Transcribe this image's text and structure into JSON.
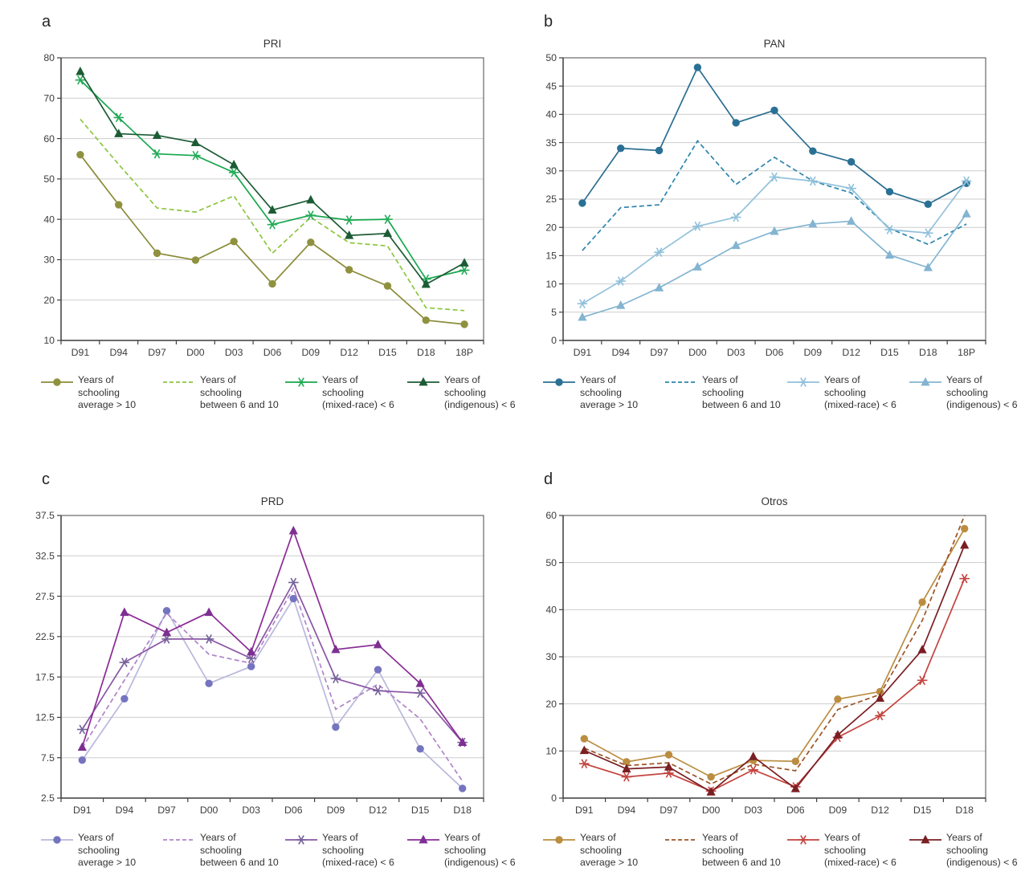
{
  "page": {
    "background": "#ffffff",
    "text_color": "#3d3d3d"
  },
  "style": {
    "grid_color": "#cdcdcd",
    "border_color": "#595959",
    "axis_color": "#404040",
    "axis_text_color": "#3d3d3d",
    "axis_font_size": 12.3
  },
  "chart_data": [
    {
      "letter": "a",
      "title": "PRI",
      "type": "line",
      "grid": "horizontal",
      "legend_position": "bottom",
      "categories": [
        "D91",
        "D94",
        "D97",
        "D00",
        "D03",
        "D06",
        "D09",
        "D12",
        "D15",
        "D18",
        "18P"
      ],
      "ylim": [
        10,
        80
      ],
      "y_ticks": [
        80,
        70,
        60,
        50,
        40,
        30,
        20,
        10
      ],
      "y_tick_labels": [
        "80",
        "70",
        "60",
        "50",
        "40",
        "30",
        "20",
        "10"
      ],
      "series": [
        {
          "name": "Years of schooling average > 10",
          "legend_lines": [
            "Years of",
            "schooling",
            "average > 10"
          ],
          "marker": "circle",
          "line_style": "solid",
          "line_color": "#8a8b39",
          "marker_color": "#90913f",
          "values": [
            56.0,
            43.6,
            31.6,
            29.9,
            34.5,
            24.0,
            34.3,
            27.5,
            23.5,
            15.0,
            14.0
          ]
        },
        {
          "name": "Years of schooling between 6 and 10",
          "legend_lines": [
            "Years of",
            "schooling",
            "between 6 and 10"
          ],
          "marker": "none",
          "line_style": "dashed",
          "line_color": "#8cc63f",
          "marker_color": "#8cc63f",
          "values": [
            64.8,
            53.6,
            42.8,
            41.8,
            45.8,
            31.6,
            40.5,
            34.2,
            33.4,
            18.1,
            17.4
          ]
        },
        {
          "name": "Years of schooling (mixed-race) < 6",
          "legend_lines": [
            "Years of",
            "schooling",
            "(mixed-race) < 6"
          ],
          "marker": "asterisk",
          "line_style": "solid",
          "line_color": "#17a74f",
          "marker_color": "#21ab57",
          "values": [
            74.5,
            65.2,
            56.2,
            55.8,
            51.6,
            38.7,
            41.0,
            39.8,
            40.0,
            25.2,
            27.4
          ]
        },
        {
          "name": "Years of schooling (indigenous) < 6",
          "legend_lines": [
            "Years of",
            "schooling",
            "(indigenous) < 6"
          ],
          "marker": "triangle",
          "line_style": "solid",
          "line_color": "#1c5c35",
          "marker_color": "#1c5c35",
          "values": [
            76.6,
            61.2,
            60.8,
            59.0,
            53.5,
            42.3,
            44.8,
            36.0,
            36.5,
            23.9,
            29.2
          ]
        }
      ]
    },
    {
      "letter": "b",
      "title": "PAN",
      "type": "line",
      "grid": "horizontal",
      "legend_position": "bottom",
      "categories": [
        "D91",
        "D94",
        "D97",
        "D00",
        "D03",
        "D06",
        "D09",
        "D12",
        "D15",
        "D18",
        "18P"
      ],
      "ylim": [
        0,
        50
      ],
      "y_ticks": [
        50,
        45,
        40,
        35,
        30,
        25,
        20,
        15,
        10,
        5,
        0
      ],
      "y_tick_labels": [
        "50",
        "45",
        "40",
        "35",
        "30",
        "25",
        "20",
        "15",
        "10",
        "5",
        "0"
      ],
      "series": [
        {
          "name": "Years of schooling average > 10",
          "legend_lines": [
            "Years of",
            "schooling",
            "average > 10"
          ],
          "marker": "circle",
          "line_style": "solid",
          "line_color": "#2a6e91",
          "marker_color": "#2a7095",
          "values": [
            24.3,
            34.0,
            33.6,
            48.3,
            38.5,
            40.7,
            33.5,
            31.6,
            26.3,
            24.1,
            27.8
          ]
        },
        {
          "name": "Years of schooling between 6 and 10",
          "legend_lines": [
            "Years of",
            "schooling",
            "between 6 and 10"
          ],
          "marker": "none",
          "line_style": "dashed",
          "line_color": "#2c85ad",
          "marker_color": "#2c85ad",
          "values": [
            15.9,
            23.5,
            24.0,
            35.3,
            27.6,
            32.4,
            28.2,
            26.1,
            19.8,
            17.0,
            20.6
          ]
        },
        {
          "name": "Years of schooling (mixed-race) < 6",
          "legend_lines": [
            "Years of",
            "schooling",
            "(mixed-race) < 6"
          ],
          "marker": "asterisk",
          "line_style": "solid",
          "line_color": "#92c1db",
          "marker_color": "#8fc0da",
          "values": [
            6.5,
            10.5,
            15.6,
            20.2,
            21.8,
            28.9,
            28.2,
            26.9,
            19.6,
            19.0,
            28.2
          ]
        },
        {
          "name": "Years of schooling (indigenous) < 6",
          "legend_lines": [
            "Years of",
            "schooling",
            "(indigenous) < 6"
          ],
          "marker": "triangle",
          "line_style": "solid",
          "line_color": "#83b4d1",
          "marker_color": "#83b4d1",
          "values": [
            4.1,
            6.2,
            9.3,
            13.0,
            16.8,
            19.3,
            20.6,
            21.1,
            15.1,
            12.9,
            22.4
          ]
        }
      ]
    },
    {
      "letter": "c",
      "title": "PRD",
      "type": "line",
      "grid": "horizontal",
      "legend_position": "bottom",
      "categories": [
        "D91",
        "D94",
        "D97",
        "D00",
        "D03",
        "D06",
        "D09",
        "D12",
        "D15",
        "D18"
      ],
      "ylim": [
        2.5,
        37.5
      ],
      "y_ticks": [
        37.5,
        32.5,
        27.5,
        22.5,
        17.5,
        12.5,
        7.5,
        2.5
      ],
      "y_tick_labels": [
        "37.5",
        "32.5",
        "27.5",
        "22.5",
        "17.5",
        "12.5",
        "7.5",
        "2.5"
      ],
      "series": [
        {
          "name": "Years of schooling average > 10",
          "legend_lines": [
            "Years of",
            "schooling",
            "average > 10"
          ],
          "marker": "circle",
          "line_style": "solid",
          "line_color": "#b8b8dc",
          "marker_color": "#7474bf",
          "values": [
            7.2,
            14.8,
            25.7,
            16.7,
            18.8,
            27.2,
            11.3,
            18.4,
            8.6,
            3.7
          ]
        },
        {
          "name": "Years of schooling between 6 and 10",
          "legend_lines": [
            "Years of",
            "schooling",
            "between 6 and 10"
          ],
          "marker": "none",
          "line_style": "dashed",
          "line_color": "#b184c9",
          "marker_color": "#b184c9",
          "values": [
            8.7,
            17.1,
            25.4,
            20.3,
            19.2,
            28.5,
            13.5,
            16.6,
            12.3,
            4.6
          ]
        },
        {
          "name": "Years of schooling (mixed-race) < 6",
          "legend_lines": [
            "Years of",
            "schooling",
            "(mixed-race) < 6"
          ],
          "marker": "asterisk",
          "line_style": "solid",
          "line_color": "#8a55a5",
          "marker_color": "#75619b",
          "values": [
            11.0,
            19.3,
            22.2,
            22.2,
            19.8,
            29.2,
            17.3,
            15.8,
            15.5,
            9.4
          ]
        },
        {
          "name": "Years of schooling (indigenous) < 6",
          "legend_lines": [
            "Years of",
            "schooling",
            "(indigenous) < 6"
          ],
          "marker": "triangle",
          "line_style": "solid",
          "line_color": "#8a2b96",
          "marker_color": "#7d2f92",
          "values": [
            8.8,
            25.5,
            23.0,
            25.5,
            20.6,
            35.6,
            20.9,
            21.5,
            16.7,
            9.4
          ]
        }
      ]
    },
    {
      "letter": "d",
      "title": "Otros",
      "type": "line",
      "grid": "horizontal",
      "legend_position": "bottom",
      "categories": [
        "D91",
        "D94",
        "D97",
        "D00",
        "D03",
        "D06",
        "D09",
        "D12",
        "D15",
        "D18"
      ],
      "ylim": [
        0,
        60
      ],
      "y_ticks": [
        60,
        50,
        40,
        30,
        20,
        10,
        0
      ],
      "y_tick_labels": [
        "60",
        "50",
        "40",
        "30",
        "20",
        "10",
        "0"
      ],
      "series": [
        {
          "name": "Years of schooling average > 10",
          "legend_lines": [
            "Years of",
            "schooling",
            "average > 10"
          ],
          "marker": "circle",
          "line_style": "solid",
          "line_color": "#bb8d41",
          "marker_color": "#bb8d41",
          "values": [
            12.6,
            7.7,
            9.2,
            4.5,
            8.0,
            7.8,
            21.0,
            22.6,
            41.6,
            57.2
          ]
        },
        {
          "name": "Years of schooling between 6 and 10",
          "legend_lines": [
            "Years of",
            "schooling",
            "between 6 and 10"
          ],
          "marker": "none",
          "line_style": "dashed",
          "line_color": "#9c5526",
          "marker_color": "#9c5526",
          "values": [
            10.6,
            6.9,
            7.5,
            3.0,
            7.2,
            5.8,
            18.8,
            22.0,
            37.7,
            60.0
          ]
        },
        {
          "name": "Years of schooling (mixed-race) < 6",
          "legend_lines": [
            "Years of",
            "schooling",
            "(mixed-race) < 6"
          ],
          "marker": "asterisk",
          "line_style": "solid",
          "line_color": "#c4433f",
          "marker_color": "#c4433f",
          "values": [
            7.3,
            4.5,
            5.3,
            1.5,
            6.0,
            2.4,
            12.9,
            17.5,
            25.0,
            46.6
          ]
        },
        {
          "name": "Years of schooling (indigenous) < 6",
          "legend_lines": [
            "Years of",
            "schooling",
            "(indigenous) < 6"
          ],
          "marker": "triangle",
          "line_style": "solid",
          "line_color": "#7a1f23",
          "marker_color": "#7a1f23",
          "values": [
            10.1,
            6.2,
            6.6,
            1.3,
            8.8,
            2.0,
            13.4,
            21.2,
            31.5,
            53.7
          ]
        }
      ]
    }
  ]
}
